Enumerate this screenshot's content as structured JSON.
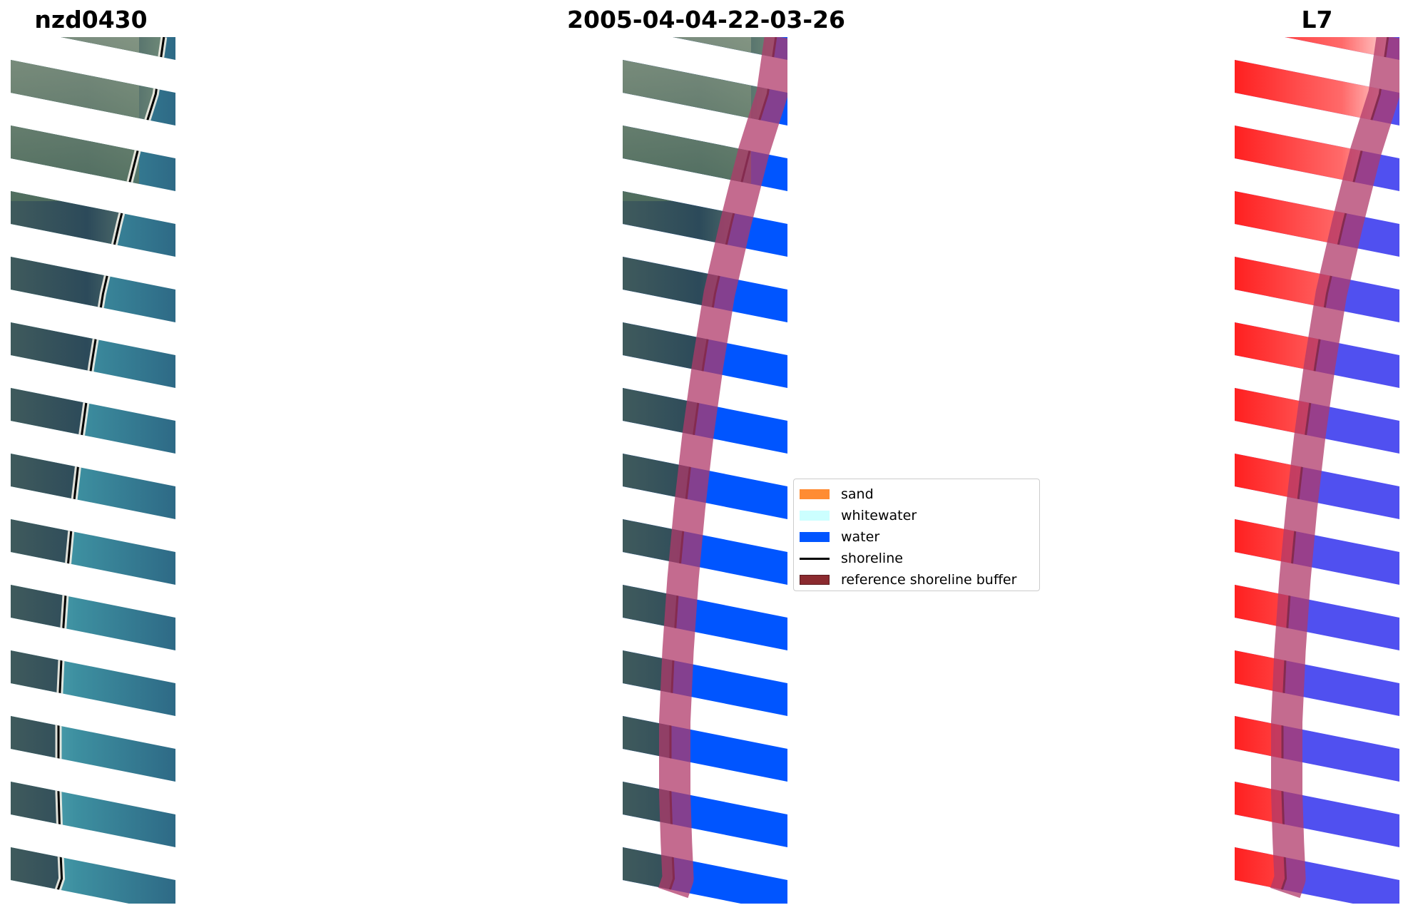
{
  "titles": {
    "left": "nzd0430",
    "center": "2005-04-04-22-03-26",
    "right": "L7"
  },
  "legend": [
    {
      "label": "sand",
      "color": "#ff8c33",
      "kind": "patch"
    },
    {
      "label": "whitewater",
      "color": "#ccffff",
      "kind": "patch"
    },
    {
      "label": "water",
      "color": "#0055ff",
      "kind": "patch"
    },
    {
      "label": "shoreline",
      "color": "#000000",
      "kind": "line"
    },
    {
      "label": "reference shoreline buffer",
      "color": "#8b2a2f",
      "kind": "patch"
    }
  ],
  "colors": {
    "buffer": "#b03a6a",
    "water_class": "#0055ff",
    "shoreline": "#000000",
    "mndwi_land": "#ff2020",
    "mndwi_water": "#5050f0"
  }
}
